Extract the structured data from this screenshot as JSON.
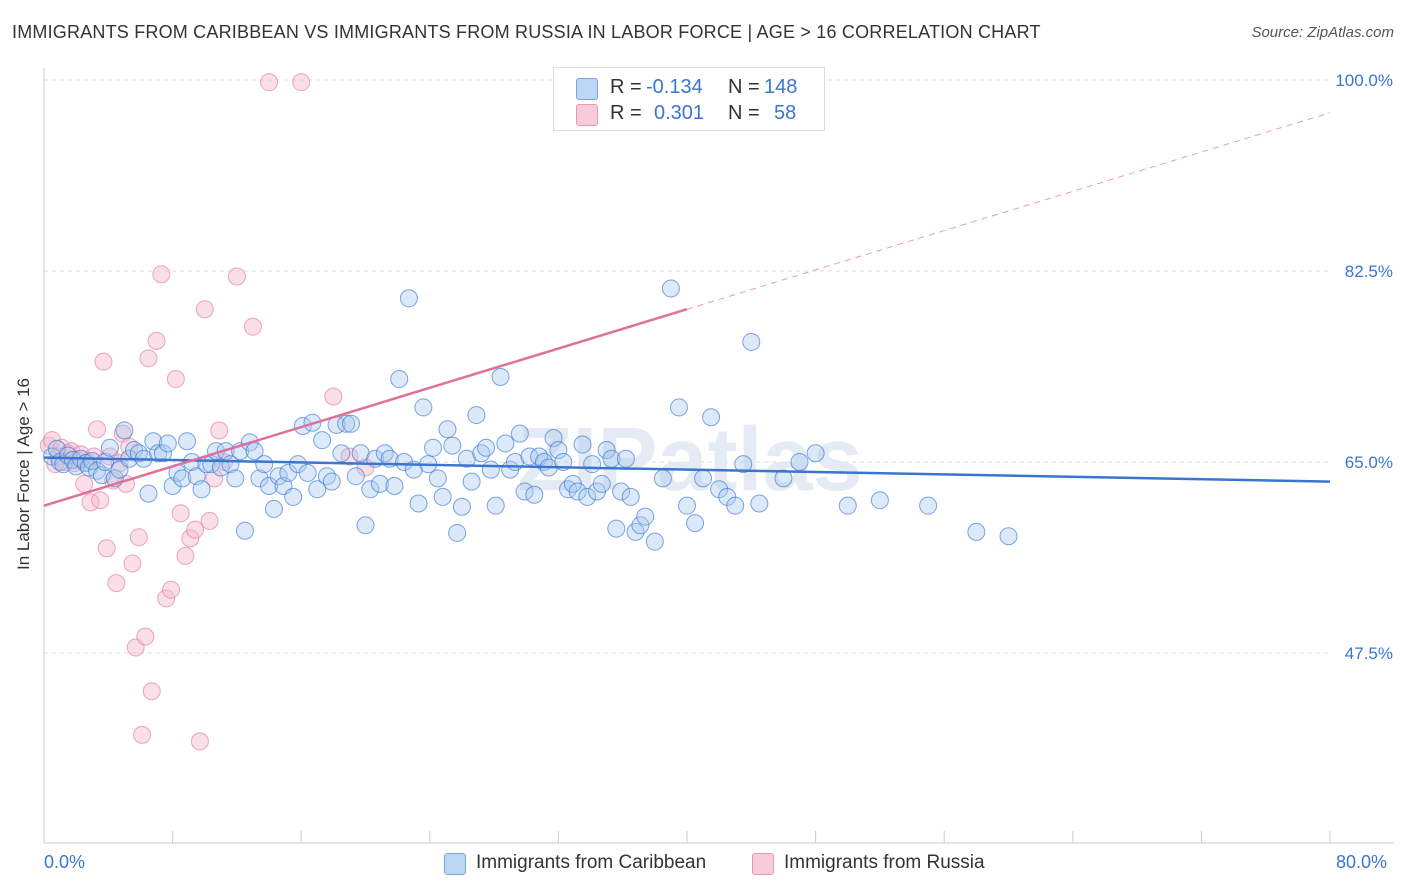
{
  "title": "IMMIGRANTS FROM CARIBBEAN VS IMMIGRANTS FROM RUSSIA IN LABOR FORCE | AGE > 16 CORRELATION CHART",
  "source": "Source: ZipAtlas.com",
  "watermark": "ZIPatlas",
  "legend": {
    "rows": [
      {
        "r_label": "R =",
        "r_value": "-0.134",
        "n_label": "N =",
        "n_value": "148",
        "color": "#a8c8f0"
      },
      {
        "r_label": "R =",
        "r_value": "0.301",
        "n_label": "N =",
        "n_value": "58",
        "color": "#f7b8cc"
      }
    ]
  },
  "bottom_legend": {
    "caribbean": "Immigrants from Caribbean",
    "russia": "Immigrants from Russia"
  },
  "chart_data": {
    "type": "scatter",
    "title": "IMMIGRANTS FROM CARIBBEAN VS IMMIGRANTS FROM RUSSIA IN LABOR FORCE | AGE > 16 CORRELATION CHART",
    "xlabel": "",
    "ylabel": "In Labor Force | Age > 16",
    "xlim": [
      0,
      80
    ],
    "ylim": [
      30,
      100
    ],
    "x_tick_labels": [
      "0.0%",
      "80.0%"
    ],
    "y_ticks": [
      47.5,
      65.0,
      82.5,
      100.0
    ],
    "y_tick_labels": [
      "47.5%",
      "65.0%",
      "82.5%",
      "100.0%"
    ],
    "grid": true,
    "colors": {
      "caribbean": "#3a76d0",
      "caribbean_fill": "#a8c8f0",
      "russia": "#e0709a",
      "russia_fill": "#f7b8cc"
    },
    "series": [
      {
        "name": "Immigrants from Caribbean",
        "trend": {
          "x": [
            0,
            80
          ],
          "y": [
            65.4,
            63.2
          ]
        },
        "points": [
          [
            0.5,
            65.5
          ],
          [
            0.8,
            66.2
          ],
          [
            1.0,
            65.0
          ],
          [
            1.2,
            64.8
          ],
          [
            1.5,
            65.6
          ],
          [
            1.8,
            65.2
          ],
          [
            2.0,
            64.6
          ],
          [
            2.3,
            65.3
          ],
          [
            2.6,
            64.9
          ],
          [
            2.8,
            64.5
          ],
          [
            3.0,
            65.1
          ],
          [
            3.3,
            64.2
          ],
          [
            3.6,
            63.8
          ],
          [
            3.8,
            65.0
          ],
          [
            4.1,
            66.3
          ],
          [
            4.4,
            63.5
          ],
          [
            4.7,
            64.3
          ],
          [
            5.0,
            67.9
          ],
          [
            5.3,
            65.3
          ],
          [
            5.6,
            66.1
          ],
          [
            5.9,
            65.8
          ],
          [
            6.2,
            65.3
          ],
          [
            6.5,
            62.1
          ],
          [
            6.8,
            66.9
          ],
          [
            7.1,
            65.8
          ],
          [
            7.4,
            65.8
          ],
          [
            7.7,
            66.7
          ],
          [
            8.0,
            62.8
          ],
          [
            8.3,
            64.0
          ],
          [
            8.6,
            63.5
          ],
          [
            8.9,
            66.9
          ],
          [
            9.2,
            65.0
          ],
          [
            9.5,
            63.7
          ],
          [
            9.8,
            62.5
          ],
          [
            10.1,
            64.8
          ],
          [
            10.4,
            64.8
          ],
          [
            10.7,
            66.0
          ],
          [
            11.0,
            64.5
          ],
          [
            11.3,
            66.0
          ],
          [
            11.6,
            64.8
          ],
          [
            11.9,
            63.5
          ],
          [
            12.2,
            66.0
          ],
          [
            12.5,
            58.7
          ],
          [
            12.8,
            66.8
          ],
          [
            13.1,
            66.0
          ],
          [
            13.4,
            63.5
          ],
          [
            13.7,
            64.8
          ],
          [
            14.0,
            62.8
          ],
          [
            14.3,
            60.7
          ],
          [
            14.6,
            63.7
          ],
          [
            14.9,
            62.8
          ],
          [
            15.2,
            64.0
          ],
          [
            15.5,
            61.8
          ],
          [
            15.8,
            64.8
          ],
          [
            16.1,
            68.3
          ],
          [
            16.4,
            64.0
          ],
          [
            16.7,
            68.6
          ],
          [
            17.0,
            62.5
          ],
          [
            17.3,
            67.0
          ],
          [
            17.6,
            63.7
          ],
          [
            17.9,
            63.2
          ],
          [
            18.2,
            68.4
          ],
          [
            18.5,
            65.8
          ],
          [
            18.8,
            68.5
          ],
          [
            19.1,
            68.5
          ],
          [
            19.4,
            63.7
          ],
          [
            19.7,
            65.8
          ],
          [
            20.0,
            59.2
          ],
          [
            20.3,
            62.5
          ],
          [
            20.6,
            65.3
          ],
          [
            20.9,
            63.0
          ],
          [
            21.2,
            65.8
          ],
          [
            21.5,
            65.3
          ],
          [
            21.8,
            62.8
          ],
          [
            22.1,
            72.6
          ],
          [
            22.4,
            65.0
          ],
          [
            22.7,
            80.0
          ],
          [
            23.0,
            64.3
          ],
          [
            23.3,
            61.2
          ],
          [
            23.6,
            70.0
          ],
          [
            23.9,
            64.8
          ],
          [
            24.2,
            66.3
          ],
          [
            24.5,
            63.5
          ],
          [
            24.8,
            61.8
          ],
          [
            25.1,
            68.0
          ],
          [
            25.4,
            66.5
          ],
          [
            25.7,
            58.5
          ],
          [
            26.0,
            60.9
          ],
          [
            26.3,
            65.3
          ],
          [
            26.6,
            63.2
          ],
          [
            26.9,
            69.3
          ],
          [
            27.2,
            65.8
          ],
          [
            27.5,
            66.3
          ],
          [
            27.8,
            64.3
          ],
          [
            28.1,
            61.0
          ],
          [
            28.4,
            72.8
          ],
          [
            28.7,
            66.7
          ],
          [
            29.0,
            64.3
          ],
          [
            29.3,
            65.0
          ],
          [
            29.6,
            67.6
          ],
          [
            29.9,
            62.3
          ],
          [
            30.2,
            65.5
          ],
          [
            30.5,
            62.0
          ],
          [
            30.8,
            65.5
          ],
          [
            31.1,
            65.0
          ],
          [
            31.4,
            64.5
          ],
          [
            31.7,
            67.2
          ],
          [
            32.0,
            66.1
          ],
          [
            32.3,
            65.0
          ],
          [
            32.6,
            62.5
          ],
          [
            32.9,
            63.0
          ],
          [
            33.2,
            62.3
          ],
          [
            33.5,
            66.6
          ],
          [
            33.8,
            61.8
          ],
          [
            34.1,
            64.8
          ],
          [
            34.4,
            62.3
          ],
          [
            34.7,
            63.0
          ],
          [
            35.0,
            66.1
          ],
          [
            35.3,
            65.3
          ],
          [
            35.6,
            58.9
          ],
          [
            35.9,
            62.3
          ],
          [
            36.2,
            65.3
          ],
          [
            36.5,
            61.8
          ],
          [
            36.8,
            58.6
          ],
          [
            37.1,
            59.2
          ],
          [
            37.4,
            60.0
          ],
          [
            38.0,
            57.7
          ],
          [
            38.5,
            63.5
          ],
          [
            39.0,
            80.9
          ],
          [
            39.5,
            70.0
          ],
          [
            40.0,
            61.0
          ],
          [
            40.5,
            59.4
          ],
          [
            41.0,
            63.5
          ],
          [
            41.5,
            69.1
          ],
          [
            42.0,
            62.5
          ],
          [
            42.5,
            61.8
          ],
          [
            43.0,
            61.0
          ],
          [
            43.5,
            64.8
          ],
          [
            44.0,
            76.0
          ],
          [
            44.5,
            61.2
          ],
          [
            46.0,
            63.5
          ],
          [
            47.0,
            65.0
          ],
          [
            48.0,
            65.8
          ],
          [
            50.0,
            61.0
          ],
          [
            52.0,
            61.5
          ],
          [
            55.0,
            61.0
          ],
          [
            58.0,
            58.6
          ],
          [
            60.0,
            58.2
          ]
        ]
      },
      {
        "name": "Immigrants from Russia",
        "trend": {
          "x": [
            0,
            40
          ],
          "y": [
            61.0,
            79.0
          ]
        },
        "trend_extension": {
          "x": [
            40,
            80
          ],
          "y": [
            79.0,
            97.0
          ]
        },
        "points": [
          [
            0.3,
            66.5
          ],
          [
            0.5,
            67.0
          ],
          [
            0.7,
            64.8
          ],
          [
            0.9,
            65.5
          ],
          [
            1.1,
            66.3
          ],
          [
            1.3,
            65.0
          ],
          [
            1.5,
            65.8
          ],
          [
            1.7,
            66.0
          ],
          [
            1.9,
            64.9
          ],
          [
            2.1,
            65.2
          ],
          [
            2.3,
            65.7
          ],
          [
            2.5,
            63.0
          ],
          [
            2.7,
            65.0
          ],
          [
            2.9,
            61.3
          ],
          [
            3.1,
            65.5
          ],
          [
            3.3,
            68.0
          ],
          [
            3.5,
            61.5
          ],
          [
            3.7,
            74.2
          ],
          [
            3.9,
            57.1
          ],
          [
            4.1,
            65.5
          ],
          [
            4.3,
            63.3
          ],
          [
            4.5,
            53.9
          ],
          [
            4.7,
            64.9
          ],
          [
            4.9,
            67.6
          ],
          [
            5.1,
            63.0
          ],
          [
            5.3,
            66.4
          ],
          [
            5.5,
            55.7
          ],
          [
            5.7,
            48.0
          ],
          [
            5.9,
            58.1
          ],
          [
            6.1,
            40.0
          ],
          [
            6.3,
            49.0
          ],
          [
            6.5,
            74.5
          ],
          [
            6.7,
            44.0
          ],
          [
            7.0,
            76.1
          ],
          [
            7.3,
            82.2
          ],
          [
            7.6,
            52.5
          ],
          [
            7.9,
            53.3
          ],
          [
            8.2,
            72.6
          ],
          [
            8.5,
            60.3
          ],
          [
            8.8,
            56.4
          ],
          [
            9.1,
            58.0
          ],
          [
            9.4,
            58.8
          ],
          [
            9.7,
            39.4
          ],
          [
            10.0,
            79.0
          ],
          [
            10.3,
            59.6
          ],
          [
            10.6,
            63.5
          ],
          [
            10.9,
            67.9
          ],
          [
            11.2,
            65.0
          ],
          [
            12.0,
            82.0
          ],
          [
            13.0,
            77.4
          ],
          [
            14.0,
            99.8
          ],
          [
            16.0,
            99.8
          ],
          [
            18.0,
            71.0
          ],
          [
            19.0,
            65.5
          ],
          [
            20.0,
            64.5
          ]
        ]
      }
    ]
  }
}
